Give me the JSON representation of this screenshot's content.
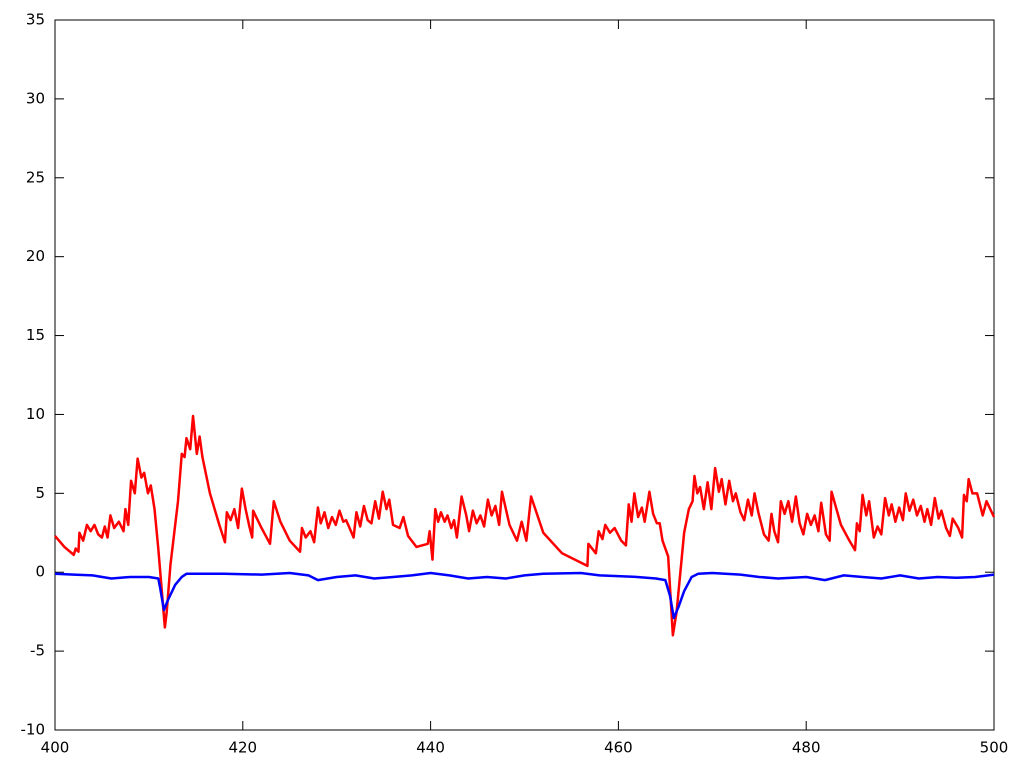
{
  "chart_data": {
    "type": "line",
    "xlim": [
      400,
      500
    ],
    "xticks": [
      400,
      420,
      440,
      460,
      480,
      500
    ],
    "ylim": [
      -10,
      35
    ],
    "yticks": [
      -10,
      -5,
      0,
      5,
      10,
      15,
      20,
      25,
      30,
      35
    ],
    "series": [
      {
        "color": "#ff0000",
        "x": [
          400,
          401,
          402,
          402.2,
          402.5,
          402.6,
          403,
          403.4,
          403.8,
          404.2,
          404.6,
          405,
          405.3,
          405.6,
          405.9,
          406.3,
          406.8,
          407.3,
          407.5,
          407.8,
          408.1,
          408.5,
          408.8,
          409.2,
          409.5,
          409.9,
          410.2,
          410.6,
          411,
          411.7,
          411.9,
          412.3,
          412.7,
          413.1,
          413.5,
          413.8,
          414,
          414.4,
          414.7,
          415.1,
          415.4,
          415.7,
          416.5,
          417.5,
          418.1,
          418.3,
          418.7,
          419.1,
          419.5,
          419.9,
          420.3,
          420.7,
          421,
          421.1,
          422,
          422.9,
          423.3,
          424,
          425,
          426.1,
          426.3,
          426.7,
          427.2,
          427.6,
          428,
          428.3,
          428.7,
          429.1,
          429.5,
          429.9,
          430.3,
          430.7,
          431,
          431.3,
          431.8,
          432.1,
          432.5,
          432.9,
          433.3,
          433.7,
          434.1,
          434.5,
          434.9,
          435.3,
          435.6,
          436,
          436.7,
          437.1,
          437.6,
          438.5,
          439.7,
          439.9,
          440.2,
          440.5,
          440.8,
          441.1,
          441.5,
          441.8,
          442.2,
          442.5,
          442.8,
          443.3,
          443.8,
          444.1,
          444.5,
          444.9,
          445.3,
          445.7,
          446.1,
          446.5,
          446.9,
          447.3,
          447.6,
          448.4,
          449.2,
          449.7,
          450.2,
          450.7,
          452,
          454,
          456.7,
          456.8,
          457.6,
          457.9,
          458.3,
          458.6,
          459.1,
          459.6,
          460.3,
          460.8,
          461.1,
          461.4,
          461.7,
          462.1,
          462.5,
          462.8,
          463.3,
          463.7,
          464.1,
          464.4,
          464.7,
          465.3,
          465.8,
          466.2,
          466.6,
          467,
          467.5,
          467.9,
          468.1,
          468.4,
          468.7,
          469.1,
          469.5,
          469.9,
          470.3,
          470.7,
          471,
          471.4,
          471.8,
          472.2,
          472.5,
          473,
          473.4,
          473.8,
          474.2,
          474.5,
          474.9,
          475.5,
          476,
          476.3,
          476.6,
          477,
          477.3,
          477.7,
          478.1,
          478.5,
          478.9,
          479.3,
          479.7,
          480.1,
          480.5,
          480.9,
          481.3,
          481.6,
          482.1,
          482.5,
          482.7,
          483.7,
          484.6,
          485.2,
          485.4,
          485.7,
          486,
          486.4,
          486.7,
          487.2,
          487.6,
          488,
          488.4,
          488.8,
          489.1,
          489.5,
          489.9,
          490.3,
          490.6,
          491,
          491.4,
          491.8,
          492.2,
          492.6,
          492.9,
          493.3,
          493.7,
          494.1,
          494.4,
          494.9,
          495.3,
          495.6,
          496.2,
          496.6,
          496.8,
          497.1,
          497.3,
          497.7,
          498.2,
          498.8,
          499.2,
          500
        ],
        "values": [
          2.3,
          1.6,
          1.1,
          1.5,
          1.3,
          2.5,
          2.0,
          3.0,
          2.6,
          3.0,
          2.4,
          2.2,
          2.9,
          2.2,
          3.6,
          2.8,
          3.2,
          2.6,
          4.0,
          3.0,
          5.8,
          5.0,
          7.2,
          6.0,
          6.3,
          5.0,
          5.5,
          4.0,
          1.5,
          -3.5,
          -2.5,
          0.5,
          2.5,
          4.5,
          7.5,
          7.3,
          8.5,
          7.8,
          9.9,
          7.5,
          8.6,
          7.3,
          5.0,
          3.0,
          1.9,
          3.8,
          3.3,
          4.0,
          2.8,
          5.3,
          4.0,
          2.9,
          2.2,
          3.9,
          2.8,
          1.8,
          4.5,
          3.2,
          2.0,
          1.3,
          2.8,
          2.2,
          2.6,
          1.9,
          4.1,
          3.1,
          3.8,
          2.8,
          3.5,
          3.0,
          3.9,
          3.2,
          3.3,
          2.9,
          2.2,
          3.8,
          2.9,
          4.2,
          3.3,
          3.1,
          4.5,
          3.4,
          5.1,
          4.0,
          4.6,
          3.0,
          2.8,
          3.5,
          2.3,
          1.6,
          1.8,
          2.6,
          0.8,
          4.0,
          3.2,
          3.8,
          3.2,
          3.6,
          2.8,
          3.3,
          2.2,
          4.8,
          3.6,
          2.6,
          3.9,
          3.1,
          3.6,
          2.9,
          4.6,
          3.6,
          4.2,
          3.0,
          5.1,
          3.0,
          2.0,
          3.2,
          2.0,
          4.8,
          2.5,
          1.2,
          0.4,
          1.8,
          1.2,
          2.6,
          2.1,
          3.0,
          2.5,
          2.8,
          2.0,
          1.7,
          4.3,
          3.2,
          5.0,
          3.5,
          4.1,
          3.2,
          5.1,
          3.7,
          3.1,
          3.1,
          2.0,
          1.0,
          -4.0,
          -2.5,
          0,
          2.5,
          4.0,
          4.5,
          6.1,
          5.0,
          5.4,
          4.0,
          5.7,
          4.0,
          6.6,
          5.1,
          5.9,
          4.3,
          5.8,
          4.5,
          5.0,
          3.8,
          3.3,
          4.6,
          3.6,
          5.0,
          3.8,
          2.4,
          2.0,
          3.7,
          2.6,
          1.9,
          4.5,
          3.7,
          4.5,
          3.2,
          4.8,
          3.1,
          2.4,
          3.7,
          3.0,
          3.6,
          2.6,
          4.4,
          2.4,
          2.0,
          5.1,
          3.0,
          2.0,
          1.4,
          3.1,
          2.6,
          4.9,
          3.6,
          4.5,
          2.2,
          2.9,
          2.4,
          4.7,
          3.6,
          4.3,
          3.2,
          4.1,
          3.3,
          5.0,
          3.9,
          4.6,
          3.6,
          4.2,
          3.2,
          4.0,
          3.0,
          4.7,
          3.4,
          3.9,
          2.8,
          2.3,
          3.4,
          2.8,
          2.2,
          4.9,
          4.5,
          5.9,
          5.0,
          5.0,
          3.6,
          4.5,
          3.5
        ]
      },
      {
        "color": "#0000ff",
        "x": [
          400,
          402,
          404,
          406,
          408,
          410,
          411,
          411.2,
          411.6,
          412,
          412.8,
          413.5,
          414,
          418,
          422,
          425,
          427,
          428,
          430,
          432,
          434,
          436,
          438,
          440,
          442,
          444,
          446,
          448,
          450,
          452,
          456,
          458,
          462,
          464,
          465,
          465.5,
          465.9,
          466.4,
          467,
          467.8,
          468.5,
          470,
          473,
          475,
          477,
          480,
          482,
          484,
          486,
          488,
          490,
          492,
          494,
          496,
          498,
          500
        ],
        "values": [
          -0.1,
          -0.15,
          -0.2,
          -0.4,
          -0.3,
          -0.3,
          -0.4,
          -1.0,
          -2.4,
          -1.8,
          -0.8,
          -0.3,
          -0.1,
          -0.1,
          -0.15,
          -0.05,
          -0.2,
          -0.5,
          -0.3,
          -0.2,
          -0.4,
          -0.3,
          -0.2,
          -0.05,
          -0.2,
          -0.4,
          -0.3,
          -0.4,
          -0.2,
          -0.1,
          -0.05,
          -0.2,
          -0.3,
          -0.4,
          -0.5,
          -1.5,
          -2.9,
          -2.2,
          -1.2,
          -0.3,
          -0.1,
          -0.05,
          -0.15,
          -0.3,
          -0.4,
          -0.3,
          -0.5,
          -0.2,
          -0.3,
          -0.4,
          -0.2,
          -0.4,
          -0.3,
          -0.35,
          -0.3,
          -0.15
        ]
      }
    ]
  }
}
